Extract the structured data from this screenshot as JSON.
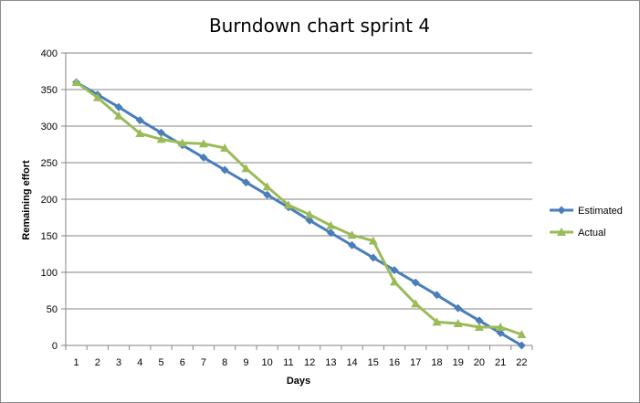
{
  "chart_data": {
    "type": "line",
    "title": "Burndown chart sprint 4",
    "xlabel": "Days",
    "ylabel": "Remaining effort",
    "x": [
      1,
      2,
      3,
      4,
      5,
      6,
      7,
      8,
      9,
      10,
      11,
      12,
      13,
      14,
      15,
      16,
      17,
      18,
      19,
      20,
      21,
      22
    ],
    "ylim": [
      0,
      400
    ],
    "yticks": [
      0,
      50,
      100,
      150,
      200,
      250,
      300,
      350,
      400
    ],
    "grid": "horizontal",
    "legend_position": "right",
    "series": [
      {
        "name": "Estimated",
        "color": "#4A7EBB",
        "marker": "diamond",
        "values": [
          360,
          343,
          326,
          308,
          291,
          274,
          257,
          240,
          223,
          206,
          189,
          171,
          154,
          137,
          120,
          103,
          86,
          69,
          51,
          34,
          17,
          0
        ]
      },
      {
        "name": "Actual",
        "color": "#9BBB59",
        "marker": "triangle",
        "values": [
          360,
          339,
          314,
          290,
          282,
          277,
          276,
          270,
          242,
          217,
          192,
          179,
          164,
          151,
          143,
          87,
          57,
          32,
          30,
          25,
          25,
          15
        ]
      }
    ]
  }
}
